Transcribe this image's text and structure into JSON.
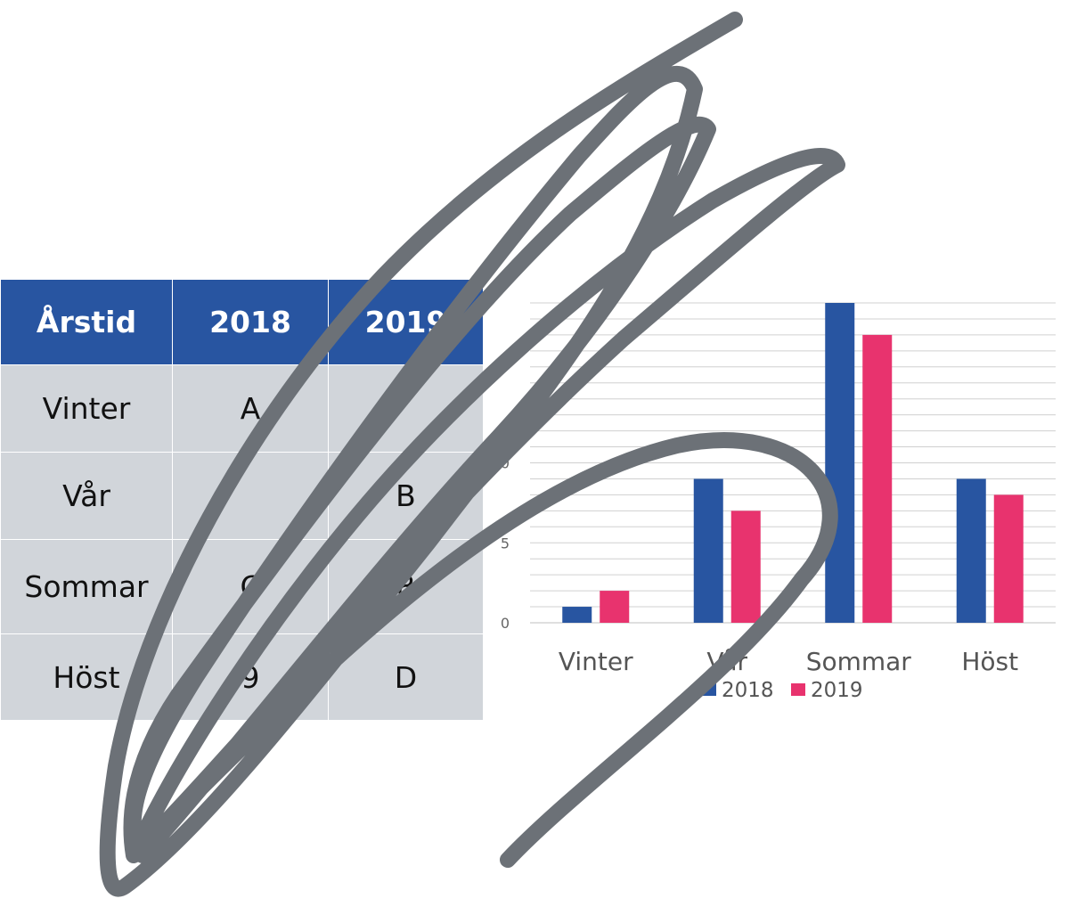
{
  "table": {
    "headers": [
      "Årstid",
      "2018",
      "2019"
    ],
    "rows": [
      [
        "Vinter",
        "A",
        ""
      ],
      [
        "Vår",
        "",
        "B"
      ],
      [
        "Sommar",
        "C",
        "8"
      ],
      [
        "Höst",
        "9",
        "D"
      ]
    ]
  },
  "chart_data": {
    "type": "bar",
    "categories": [
      "Vinter",
      "Vår",
      "Sommar",
      "Höst"
    ],
    "series": [
      {
        "name": "2018",
        "values": [
          1,
          9,
          20,
          9
        ],
        "color": "#2855a1"
      },
      {
        "name": "2019",
        "values": [
          2,
          7,
          18,
          8
        ],
        "color": "#e8336e"
      }
    ],
    "yticks": [
      "0",
      "5",
      "10"
    ],
    "ylim": [
      0,
      20
    ],
    "grid": true,
    "legend_position": "bottom"
  },
  "scribble": {
    "color": "#6c7177"
  }
}
